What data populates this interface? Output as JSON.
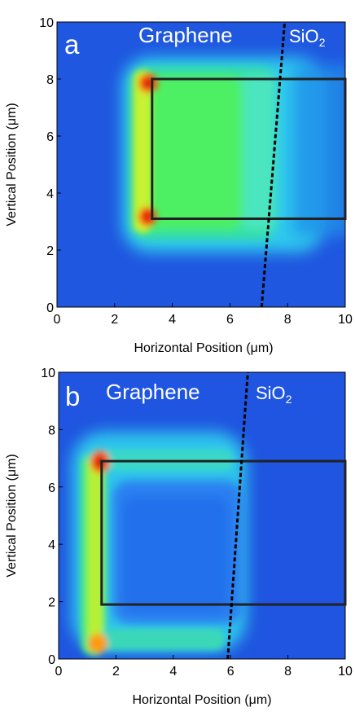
{
  "chart_data": [
    {
      "type": "heatmap",
      "panel_label": "a",
      "xlabel_prefix": "Horizontal Position (",
      "xlabel_unit": "μm",
      "xlabel_suffix": ")",
      "ylabel_prefix": "Vertical Position (",
      "ylabel_unit": "μm",
      "ylabel_suffix": ")",
      "xlim": [
        0,
        10
      ],
      "ylim": [
        0,
        10
      ],
      "x_ticks": [
        "0",
        "2",
        "4",
        "6",
        "8",
        "10"
      ],
      "y_ticks": [
        "0",
        "2",
        "4",
        "6",
        "8",
        "10"
      ],
      "region_left": "Graphene",
      "region_right_base": "SiO",
      "region_right_sub": "2",
      "box": {
        "x0": 3.3,
        "x1": 10,
        "y0": 3.1,
        "y1": 8.0
      },
      "boundary_line": {
        "x_bottom": 7.1,
        "x_top": 7.9
      },
      "colors": {
        "background": "#1f55e0",
        "box": "#222222",
        "line": "#000000"
      }
    },
    {
      "type": "heatmap",
      "panel_label": "b",
      "xlabel_prefix": "Horizontal Position (",
      "xlabel_unit": "μm",
      "xlabel_suffix": ")",
      "ylabel_prefix": "Vertical Position (",
      "ylabel_unit": "μm",
      "ylabel_suffix": ")",
      "xlim": [
        0,
        10
      ],
      "ylim": [
        0,
        10
      ],
      "x_ticks": [
        "0",
        "2",
        "4",
        "6",
        "8",
        "10"
      ],
      "y_ticks": [
        "0",
        "2",
        "4",
        "6",
        "8",
        "10"
      ],
      "region_left": "Graphene",
      "region_right_base": "SiO",
      "region_right_sub": "2",
      "box": {
        "x0": 1.5,
        "x1": 10,
        "y0": 1.9,
        "y1": 6.9
      },
      "boundary_line": {
        "x_bottom": 5.9,
        "x_top": 6.6
      },
      "colors": {
        "background": "#1f55e0",
        "box": "#222222",
        "line": "#000000"
      }
    }
  ]
}
